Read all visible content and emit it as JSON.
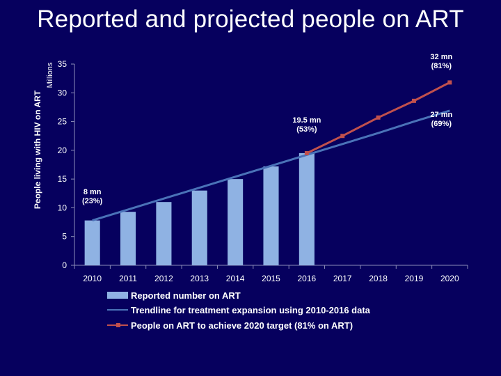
{
  "chart_data": {
    "type": "bar",
    "title": "Reported and projected people on ART",
    "ylabel": "People living with HIV on ART",
    "yunit": "Millions",
    "ylim": [
      0,
      35
    ],
    "yticks": [
      0,
      5,
      10,
      15,
      20,
      25,
      30,
      35
    ],
    "categories": [
      "2010",
      "2011",
      "2012",
      "2013",
      "2014",
      "2015",
      "2016",
      "2017",
      "2018",
      "2019",
      "2020"
    ],
    "legend_position": "bottom",
    "grid": false,
    "series": [
      {
        "name": "Reported number on ART",
        "kind": "bar",
        "color": "#8fb2e3",
        "values": [
          7.8,
          9.3,
          11.0,
          13.0,
          15.0,
          17.2,
          19.5,
          null,
          null,
          null,
          null
        ]
      },
      {
        "name": "Trendline for treatment expansion using 2010-2016 data",
        "kind": "line",
        "color": "#4a72b8",
        "values": [
          7.8,
          9.7,
          11.6,
          13.5,
          15.4,
          17.3,
          19.2,
          21.1,
          23.0,
          25.0,
          26.9
        ]
      },
      {
        "name": "People on ART to achieve 2020 target (81% on ART)",
        "kind": "line",
        "color": "#c0504d",
        "values": [
          null,
          null,
          null,
          null,
          null,
          null,
          19.5,
          22.5,
          25.7,
          28.6,
          31.8
        ]
      }
    ],
    "annotations": [
      {
        "category": "2010",
        "y": 8,
        "lines": [
          "8 mn",
          "(23%)"
        ]
      },
      {
        "category": "2016",
        "y": 19.5,
        "lines": [
          "19.5 mn",
          "(53%)"
        ]
      },
      {
        "category": "2020",
        "y": 32,
        "lines": [
          "32 mn",
          "(81%)"
        ]
      },
      {
        "category": "2020",
        "y": 27,
        "lines": [
          "27 mn",
          "(69%)"
        ]
      }
    ]
  }
}
